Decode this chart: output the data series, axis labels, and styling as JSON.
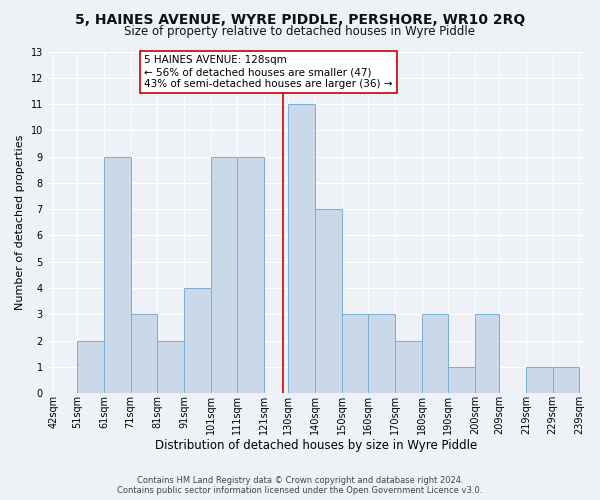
{
  "title": "5, HAINES AVENUE, WYRE PIDDLE, PERSHORE, WR10 2RQ",
  "subtitle": "Size of property relative to detached houses in Wyre Piddle",
  "xlabel": "Distribution of detached houses by size in Wyre Piddle",
  "ylabel": "Number of detached properties",
  "footnote1": "Contains HM Land Registry data © Crown copyright and database right 2024.",
  "footnote2": "Contains public sector information licensed under the Open Government Licence v3.0.",
  "bin_edges": [
    42,
    51,
    61,
    71,
    81,
    91,
    101,
    111,
    121,
    130,
    140,
    150,
    160,
    170,
    180,
    190,
    200,
    209,
    219,
    229,
    239
  ],
  "bin_labels": [
    "42sqm",
    "51sqm",
    "61sqm",
    "71sqm",
    "81sqm",
    "91sqm",
    "101sqm",
    "111sqm",
    "121sqm",
    "130sqm",
    "140sqm",
    "150sqm",
    "160sqm",
    "170sqm",
    "180sqm",
    "190sqm",
    "200sqm",
    "209sqm",
    "219sqm",
    "229sqm",
    "239sqm"
  ],
  "counts": [
    0,
    2,
    9,
    3,
    2,
    4,
    9,
    9,
    0,
    11,
    7,
    3,
    3,
    2,
    3,
    1,
    3,
    0,
    1,
    1
  ],
  "bar_facecolor": "#c9d9ea",
  "bar_edgecolor": "#7aafd4",
  "property_line_x": 128,
  "property_line_color": "#cc0000",
  "annotation_text": "5 HAINES AVENUE: 128sqm\n← 56% of detached houses are smaller (47)\n43% of semi-detached houses are larger (36) →",
  "annotation_box_color": "#cc0000",
  "ylim": [
    0,
    13
  ],
  "yticks": [
    0,
    1,
    2,
    3,
    4,
    5,
    6,
    7,
    8,
    9,
    10,
    11,
    12,
    13
  ],
  "background_color": "#eef2f7",
  "grid_color": "#ffffff",
  "title_fontsize": 10,
  "subtitle_fontsize": 8.5,
  "xlabel_fontsize": 8.5,
  "ylabel_fontsize": 8,
  "tick_fontsize": 7,
  "annotation_fontsize": 7.5,
  "footnote_fontsize": 6
}
